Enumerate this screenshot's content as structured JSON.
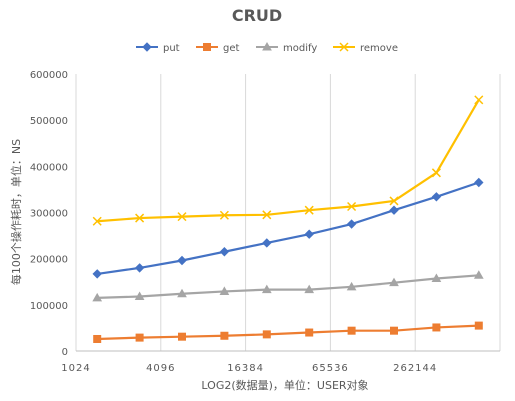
{
  "chart_data": {
    "type": "line",
    "title": "CRUD",
    "xlabel": "LOG2(数据量)，单位：USER对象",
    "ylabel": "每100个操作耗时，单位：NS",
    "x_tick_labels": [
      "1024",
      "4096",
      "16384",
      "65536",
      "262144"
    ],
    "num_points": 10,
    "ylim": [
      0,
      600000
    ],
    "y_ticks": [
      0,
      100000,
      200000,
      300000,
      400000,
      500000,
      600000
    ],
    "y_tick_labels": [
      "0",
      "100000",
      "200000",
      "300000",
      "400000",
      "500000",
      "600000"
    ],
    "grid": "vertical",
    "legend_position": "top",
    "series": [
      {
        "name": "put",
        "color": "#4472C4",
        "marker": "diamond",
        "values": [
          167000,
          180000,
          196000,
          215000,
          234000,
          253000,
          275000,
          305000,
          334000,
          365000
        ]
      },
      {
        "name": "get",
        "color": "#ED7D31",
        "marker": "square",
        "values": [
          26000,
          29000,
          31000,
          33000,
          36000,
          40000,
          44000,
          44000,
          51000,
          55000
        ]
      },
      {
        "name": "modify",
        "color": "#A5A5A5",
        "marker": "triangle",
        "values": [
          115000,
          118000,
          124000,
          129000,
          133000,
          133000,
          139000,
          148000,
          157000,
          164000
        ]
      },
      {
        "name": "remove",
        "color": "#FFC000",
        "marker": "x",
        "values": [
          281000,
          288000,
          291000,
          294000,
          295000,
          305000,
          313000,
          325000,
          386000,
          544000
        ]
      }
    ]
  }
}
